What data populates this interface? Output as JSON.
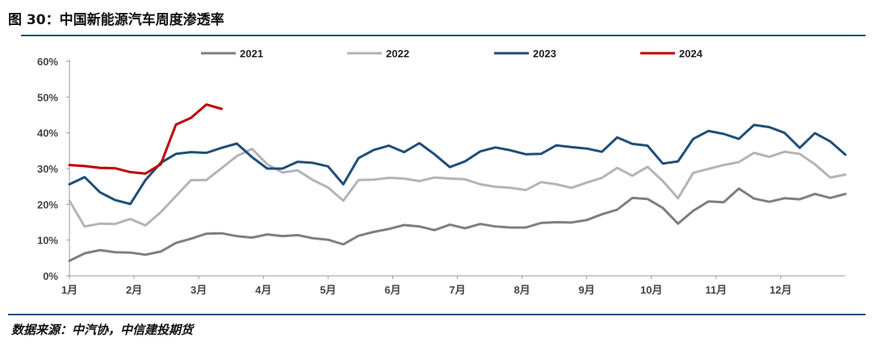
{
  "title": "图 30：中国新能源汽车周度渗透率",
  "source": "数据来源：中汽协，中信建投期货",
  "chart_data": {
    "type": "line",
    "title": "",
    "xlabel": "",
    "ylabel": "",
    "ylim": [
      0,
      60
    ],
    "yticks": [
      "0%",
      "10%",
      "20%",
      "30%",
      "40%",
      "50%",
      "60%"
    ],
    "xticks": [
      "1月",
      "2月",
      "3月",
      "4月",
      "5月",
      "6月",
      "7月",
      "8月",
      "9月",
      "10月",
      "11月",
      "12月"
    ],
    "x_unit": "week",
    "grid": false,
    "legend_position": "top",
    "series": [
      {
        "name": "2021",
        "color": "#7f7f7f",
        "values": [
          4.2,
          6.3,
          7.2,
          6.6,
          6.5,
          5.9,
          6.8,
          9.2,
          10.4,
          11.8,
          11.9,
          11.1,
          10.7,
          11.6,
          11.1,
          11.4,
          10.5,
          10.1,
          8.8,
          11.2,
          12.3,
          13.1,
          14.2,
          13.8,
          12.8,
          14.3,
          13.3,
          14.5,
          13.8,
          13.5,
          13.5,
          14.8,
          15.0,
          14.9,
          15.6,
          17.2,
          18.5,
          21.8,
          21.5,
          19.0,
          14.6,
          18.2,
          20.8,
          20.6,
          24.4,
          21.6,
          20.7,
          21.7,
          21.4,
          22.9,
          21.8,
          22.9
        ]
      },
      {
        "name": "2022",
        "color": "#b4b4b4",
        "values": [
          21.0,
          13.8,
          14.6,
          14.5,
          15.9,
          14.1,
          17.8,
          22.3,
          26.8,
          26.8,
          30.1,
          33.5,
          35.5,
          31.2,
          28.9,
          29.5,
          26.8,
          24.7,
          21.0,
          26.8,
          26.9,
          27.4,
          27.2,
          26.5,
          27.5,
          27.2,
          27.0,
          25.6,
          24.9,
          24.6,
          24.0,
          26.2,
          25.6,
          24.6,
          26.1,
          27.4,
          30.2,
          28.0,
          30.5,
          26.5,
          21.7,
          28.8,
          29.9,
          31.0,
          31.8,
          34.4,
          33.3,
          34.7,
          34.1,
          31.2,
          27.5,
          28.3
        ]
      },
      {
        "name": "2023",
        "color": "#1f4e79",
        "values": [
          25.6,
          27.6,
          23.4,
          21.2,
          20.1,
          26.8,
          31.6,
          34.1,
          34.6,
          34.4,
          35.8,
          37.0,
          33.2,
          30.0,
          30.0,
          31.9,
          31.6,
          30.6,
          25.6,
          32.9,
          35.2,
          36.4,
          34.6,
          37.1,
          34.0,
          30.4,
          32.0,
          34.8,
          35.9,
          35.1,
          34.0,
          34.1,
          36.5,
          36.0,
          35.6,
          34.7,
          38.7,
          36.9,
          36.4,
          31.4,
          32.0,
          38.3,
          40.5,
          39.7,
          38.3,
          42.2,
          41.6,
          40.0,
          35.8,
          39.9,
          37.6,
          33.9
        ]
      },
      {
        "name": "2024",
        "color": "#c00000",
        "values": [
          31.0,
          30.7,
          30.2,
          30.1,
          29.0,
          28.6,
          31.2,
          42.3,
          44.2,
          47.9,
          46.7
        ]
      }
    ]
  }
}
